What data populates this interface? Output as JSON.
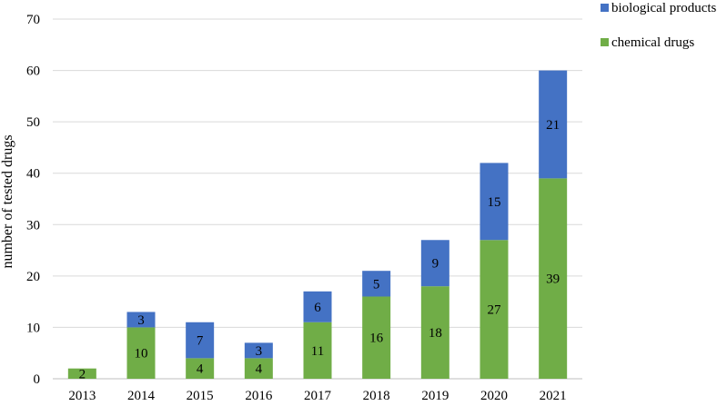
{
  "chart_data": {
    "type": "bar",
    "stacked": true,
    "categories": [
      "2013",
      "2014",
      "2015",
      "2016",
      "2017",
      "2018",
      "2019",
      "2020",
      "2021"
    ],
    "series": [
      {
        "name": "chemical drugs",
        "color": "#70ad47",
        "values": [
          2,
          10,
          4,
          4,
          11,
          16,
          18,
          27,
          39
        ]
      },
      {
        "name": "biological products",
        "color": "#4472c4",
        "values": [
          0,
          3,
          7,
          3,
          6,
          5,
          9,
          15,
          21
        ]
      }
    ],
    "data_labels": [
      [
        "2",
        "10",
        "4",
        "4",
        "11",
        "16",
        "18",
        "27",
        "39"
      ],
      [
        "",
        "3",
        "7",
        "3",
        "6",
        "5",
        "9",
        "15",
        "21"
      ]
    ],
    "ylabel": "number of tested drugs",
    "ylim": [
      0,
      70
    ],
    "yticks": [
      0,
      10,
      20,
      30,
      40,
      50,
      60,
      70
    ],
    "grid": "horizontal",
    "gridline_color": "#d9d9d9",
    "legend_placement": "top-right",
    "legend_order": [
      "biological products",
      "chemical drugs"
    ]
  }
}
